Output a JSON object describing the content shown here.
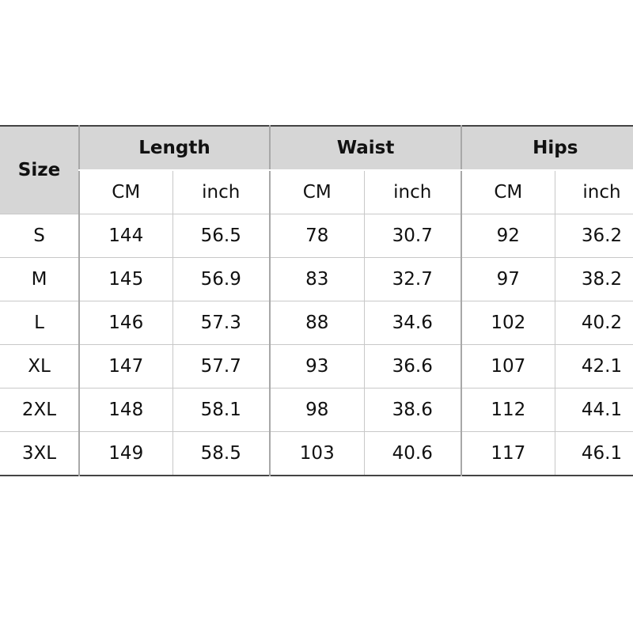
{
  "table": {
    "size_header": "Size",
    "groups": [
      {
        "name": "Length",
        "units": [
          "CM",
          "inch"
        ]
      },
      {
        "name": "Waist",
        "units": [
          "CM",
          "inch"
        ]
      },
      {
        "name": "Hips",
        "units": [
          "CM",
          "inch"
        ]
      }
    ],
    "rows": [
      [
        "S",
        144,
        56.5,
        78,
        30.7,
        92,
        36.2
      ],
      [
        "M",
        145,
        56.9,
        83,
        32.7,
        97,
        38.2
      ],
      [
        "L",
        146,
        57.3,
        88,
        34.6,
        102,
        40.2
      ],
      [
        "XL",
        147,
        57.7,
        93,
        36.6,
        107,
        42.1
      ],
      [
        "2XL",
        148,
        58.1,
        98,
        38.6,
        112,
        44.1
      ],
      [
        "3XL",
        149,
        58.5,
        103,
        40.6,
        117,
        46.1
      ]
    ]
  }
}
